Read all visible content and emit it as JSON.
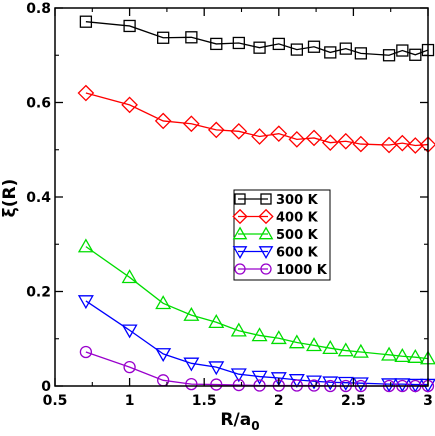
{
  "chart_data": {
    "type": "line",
    "xlabel": "R/a",
    "xlabel_sub": "0",
    "ylabel": "ξ(R)",
    "xlim": [
      0.5,
      3.0
    ],
    "ylim": [
      0.0,
      0.8
    ],
    "xticks": [
      0.5,
      1.0,
      1.5,
      2.0,
      2.5,
      3.0
    ],
    "xtick_labels": [
      "0.5",
      "1",
      "1.5",
      "2",
      "2.5",
      "3"
    ],
    "yticks": [
      0.0,
      0.2,
      0.4,
      0.6,
      0.8
    ],
    "ytick_labels": [
      "0",
      "0.2",
      "0.4",
      "0.6",
      "0.8"
    ],
    "grid": false,
    "legend_position": "center-right",
    "x": [
      0.707,
      1.0,
      1.225,
      1.414,
      1.581,
      1.732,
      1.871,
      2.0,
      2.121,
      2.236,
      2.345,
      2.449,
      2.55,
      2.739,
      2.828,
      2.915,
      3.0
    ],
    "series": [
      {
        "name": "300 K",
        "color": "#000000",
        "marker": "square",
        "values": [
          0.771,
          0.762,
          0.737,
          0.738,
          0.724,
          0.726,
          0.716,
          0.724,
          0.712,
          0.718,
          0.706,
          0.714,
          0.704,
          0.7,
          0.71,
          0.701,
          0.711
        ]
      },
      {
        "name": "400 K",
        "color": "#ff0000",
        "marker": "diamond",
        "values": [
          0.62,
          0.595,
          0.561,
          0.555,
          0.542,
          0.539,
          0.528,
          0.534,
          0.522,
          0.525,
          0.515,
          0.518,
          0.512,
          0.51,
          0.514,
          0.509,
          0.511
        ]
      },
      {
        "name": "500 K",
        "color": "#00dd00",
        "marker": "triangle-up",
        "values": [
          0.295,
          0.23,
          0.175,
          0.15,
          0.135,
          0.117,
          0.107,
          0.101,
          0.092,
          0.086,
          0.08,
          0.075,
          0.072,
          0.066,
          0.063,
          0.061,
          0.058
        ]
      },
      {
        "name": "600 K",
        "color": "#0000ff",
        "marker": "triangle-down",
        "values": [
          0.18,
          0.118,
          0.068,
          0.048,
          0.04,
          0.025,
          0.02,
          0.017,
          0.013,
          0.01,
          0.008,
          0.007,
          0.006,
          0.004,
          0.004,
          0.003,
          0.003
        ]
      },
      {
        "name": "1000 K",
        "color": "#9900cc",
        "marker": "circle",
        "values": [
          0.072,
          0.04,
          0.012,
          0.004,
          0.003,
          0.002,
          0.001,
          0.001,
          0.001,
          0.001,
          0.0,
          0.0,
          0.0,
          0.0,
          0.0,
          0.0,
          0.0
        ]
      }
    ]
  }
}
